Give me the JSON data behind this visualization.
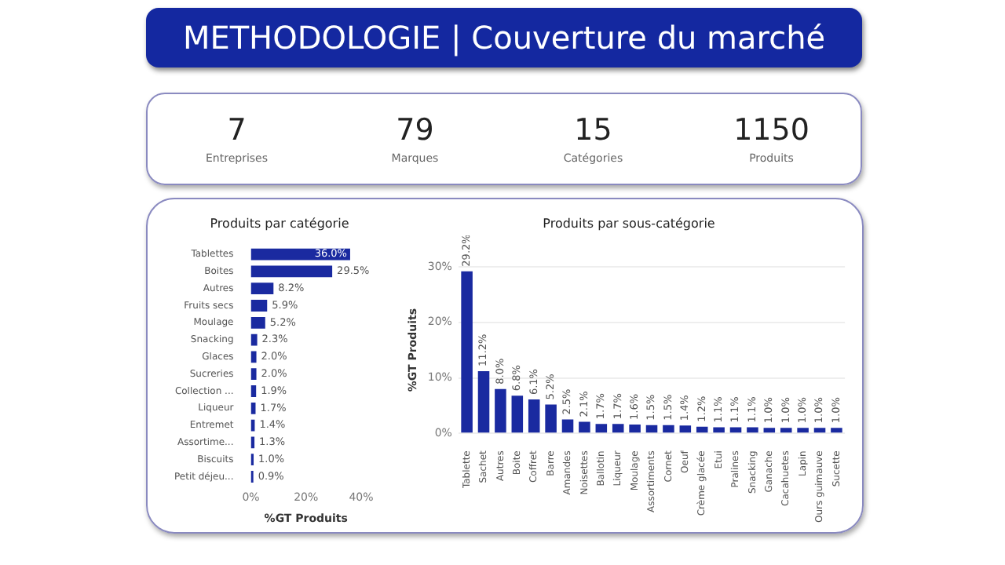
{
  "chart_data": [
    {
      "type": "other",
      "title": "METHODOLOGIE | Couverture du marché",
      "annotations": [
        "7",
        "Entreprises",
        "79",
        "Marques",
        "15",
        "Catégories",
        "1150",
        "Produits"
      ]
    },
    {
      "type": "bar",
      "title": "Produits par catégorie",
      "orientation": "horizontal",
      "color": "#1a2aa0",
      "categories": [
        "Tablettes",
        "Boites",
        "Autres",
        "Fruits secs",
        "Moulage",
        "Snacking",
        "Glaces",
        "Sucreries",
        "Collection ...",
        "Liqueur",
        "Entremet",
        "Assortime...",
        "Biscuits",
        "Petit déjeu..."
      ],
      "values": [
        36.0,
        29.5,
        8.2,
        5.9,
        5.2,
        2.3,
        2.0,
        2.0,
        1.9,
        1.7,
        1.4,
        1.3,
        1.0,
        0.9
      ],
      "value_labels": [
        "36.0%",
        "29.5%",
        "8.2%",
        "5.9%",
        "5.2%",
        "2.3%",
        "2.0%",
        "2.0%",
        "1.9%",
        "1.7%",
        "1.4%",
        "1.3%",
        "1.0%",
        "0.9%"
      ],
      "xlim": [
        0,
        40
      ],
      "xticks": [
        {
          "value": 0,
          "label": "0%"
        },
        {
          "value": 20,
          "label": "20%"
        },
        {
          "value": 40,
          "label": "40%"
        }
      ],
      "xlabel": "%GT Produits"
    },
    {
      "type": "bar",
      "title": "Produits par sous-catégorie",
      "color": "#1a2aa0",
      "grid": "y",
      "categories": [
        "Tablette",
        "Sachet",
        "Autres",
        "Boite",
        "Coffret",
        "Barre",
        "Amandes",
        "Noisettes",
        "Ballotin",
        "Liqueur",
        "Moulage",
        "Assortiments",
        "Cornet",
        "Oeuf",
        "Crème glacée",
        "Etui",
        "Pralines",
        "Snacking",
        "Ganache",
        "Cacahuetes",
        "Lapin",
        "Ours guimauve",
        "Sucette"
      ],
      "values": [
        29.2,
        11.2,
        8.0,
        6.8,
        6.1,
        5.2,
        2.5,
        2.1,
        1.7,
        1.7,
        1.6,
        1.5,
        1.5,
        1.4,
        1.2,
        1.1,
        1.1,
        1.1,
        1.0,
        1.0,
        1.0,
        1.0,
        1.0
      ],
      "value_labels": [
        "29.2%",
        "11.2%",
        "8.0%",
        "6.8%",
        "6.1%",
        "5.2%",
        "2.5%",
        "2.1%",
        "1.7%",
        "1.7%",
        "1.6%",
        "1.5%",
        "1.5%",
        "1.4%",
        "1.2%",
        "1.1%",
        "1.1%",
        "1.1%",
        "1.0%",
        "1.0%",
        "1.0%",
        "1.0%",
        "1.0%"
      ],
      "ylim": [
        0,
        30
      ],
      "yticks": [
        {
          "value": 0,
          "label": "0%"
        },
        {
          "value": 10,
          "label": "10%"
        },
        {
          "value": 20,
          "label": "20%"
        },
        {
          "value": 30,
          "label": "30%"
        }
      ],
      "ylabel": "%GT Produits"
    }
  ]
}
